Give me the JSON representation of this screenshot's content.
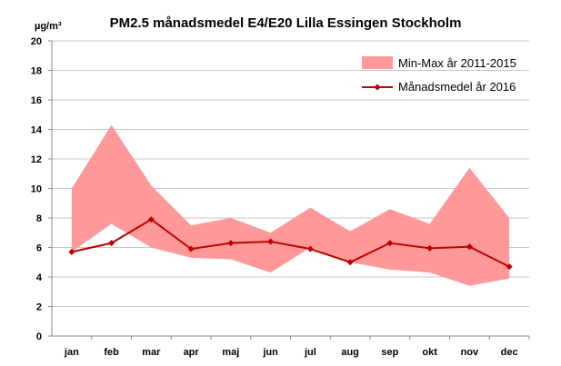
{
  "chart_data": {
    "type": "line",
    "title": "PM2.5 månadsmedel E4/E20 Lilla Essingen Stockholm",
    "ylabel": "µg/m³",
    "ylim": [
      0,
      20
    ],
    "yticks": [
      "0",
      "2",
      "4",
      "6",
      "8",
      "10",
      "12",
      "14",
      "16",
      "18",
      "20"
    ],
    "categories": [
      "jan",
      "feb",
      "mar",
      "apr",
      "maj",
      "jun",
      "jul",
      "aug",
      "sep",
      "okt",
      "nov",
      "dec"
    ],
    "grid": true,
    "legend_position": "top-right",
    "series": [
      {
        "name": "Min-Max år 2011-2015",
        "kind": "band",
        "color": "#ff9999",
        "min": [
          5.7,
          7.6,
          6.0,
          5.3,
          5.2,
          4.3,
          6.0,
          5.0,
          4.5,
          4.3,
          3.4,
          3.9
        ],
        "max": [
          10.0,
          14.3,
          10.2,
          7.5,
          8.0,
          7.0,
          8.7,
          7.1,
          8.6,
          7.6,
          11.4,
          8.0
        ]
      },
      {
        "name": "Månadsmedel år 2016",
        "kind": "line",
        "color": "#c00000",
        "values": [
          5.7,
          6.3,
          7.9,
          5.9,
          6.3,
          6.4,
          5.9,
          5.0,
          6.3,
          5.95,
          6.05,
          4.7
        ]
      }
    ]
  }
}
